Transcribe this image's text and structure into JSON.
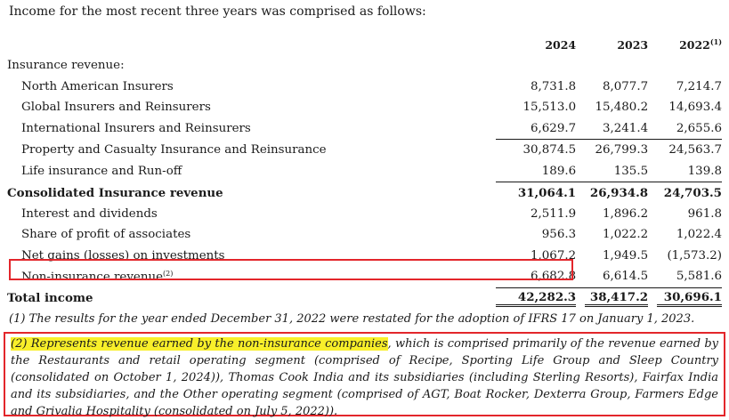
{
  "intro": "Income for the most recent three years was comprised as follows:",
  "columns": [
    "2024",
    "2023",
    "2022"
  ],
  "column_note_marker": "(1)",
  "section_heading": "Insurance revenue:",
  "rows": [
    {
      "label": "North American Insurers",
      "v2024": "8,731.8",
      "v2023": "8,077.7",
      "v2022": "7,214.7"
    },
    {
      "label": "Global Insurers and Reinsurers",
      "v2024": "15,513.0",
      "v2023": "15,480.2",
      "v2022": "14,693.4"
    },
    {
      "label": "International Insurers and Reinsurers",
      "v2024": "6,629.7",
      "v2023": "3,241.4",
      "v2022": "2,655.6"
    },
    {
      "label": "Property and Casualty Insurance and Reinsurance",
      "v2024": "30,874.5",
      "v2023": "26,799.3",
      "v2022": "24,563.7"
    },
    {
      "label": "Life insurance and Run-off",
      "v2024": "189.6",
      "v2023": "135.5",
      "v2022": "139.8"
    },
    {
      "label": "Consolidated Insurance revenue",
      "v2024": "31,064.1",
      "v2023": "26,934.8",
      "v2022": "24,703.5"
    },
    {
      "label": "Interest and dividends",
      "v2024": "2,511.9",
      "v2023": "1,896.2",
      "v2022": "961.8"
    },
    {
      "label": "Share of profit of associates",
      "v2024": "956.3",
      "v2023": "1,022.2",
      "v2022": "1,022.4"
    },
    {
      "label": "Net gains (losses) on investments",
      "v2024": "1,067.2",
      "v2023": "1,949.5",
      "v2022": "(1,573.2)"
    },
    {
      "label": "Non-insurance revenue",
      "marker": "(2)",
      "v2024": "6,682.8",
      "v2023": "6,614.5",
      "v2022": "5,581.6"
    },
    {
      "label": "Total income",
      "v2024": "42,282.3",
      "v2023": "38,417.2",
      "v2022": "30,696.1"
    }
  ],
  "notes": {
    "note1": "(1) The results for the year ended December 31, 2022 were restated for the adoption of IFRS 17 on January 1, 2023.",
    "note2_highlight": "(2) Represents revenue earned by the non-insurance companies",
    "note2_rest": ", which is comprised primarily of the revenue earned by the Restaurants and retail operating segment (comprised of Recipe, Sporting Life Group and Sleep Country (consolidated on October 1, 2024)), Thomas Cook India and its subsidiaries (including Sterling Resorts), Fairfax India and its subsidiaries, and the Other operating segment (comprised of AGT, Boat Rocker, Dexterra Group, Farmers Edge and Grivalia Hospitality (consolidated on July 5, 2022))."
  },
  "colors": {
    "highlight_box": "#e3262b",
    "highlight_text": "#f8ef2a"
  }
}
